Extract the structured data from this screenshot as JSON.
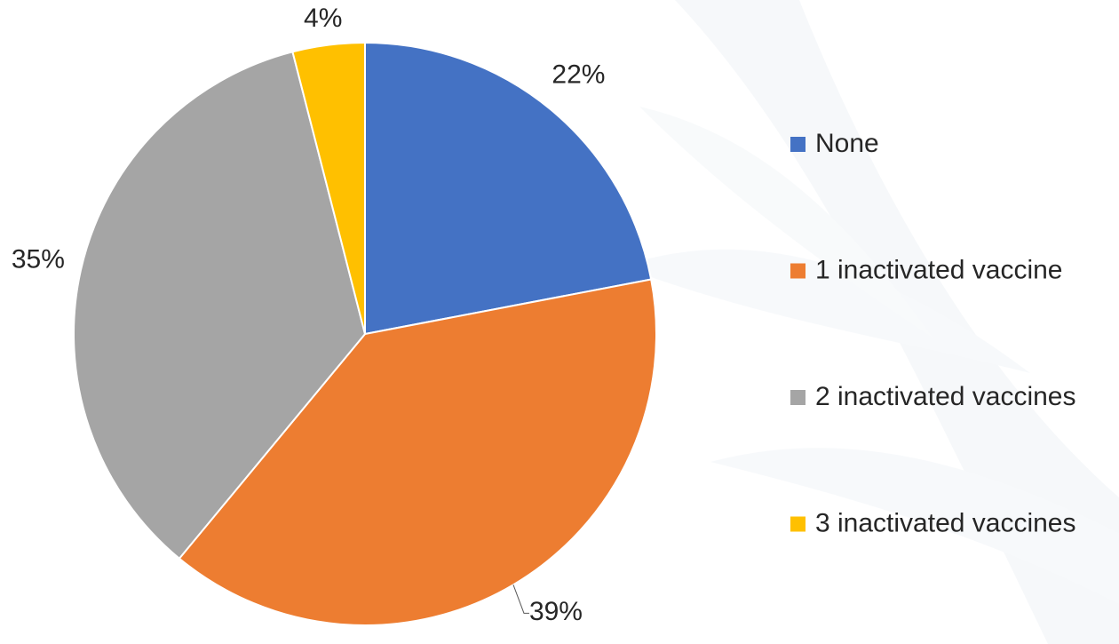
{
  "chart_data": {
    "type": "pie",
    "categories": [
      "None",
      "1 inactivated vaccine",
      "2 inactivated vaccines",
      "3 inactivated vaccines"
    ],
    "values": [
      22,
      39,
      35,
      4
    ],
    "value_labels": [
      "22%",
      "39%",
      "35%",
      "4%"
    ],
    "colors": [
      "#4472c4",
      "#ed7d31",
      "#a5a5a5",
      "#ffc000"
    ],
    "legend": "right"
  }
}
